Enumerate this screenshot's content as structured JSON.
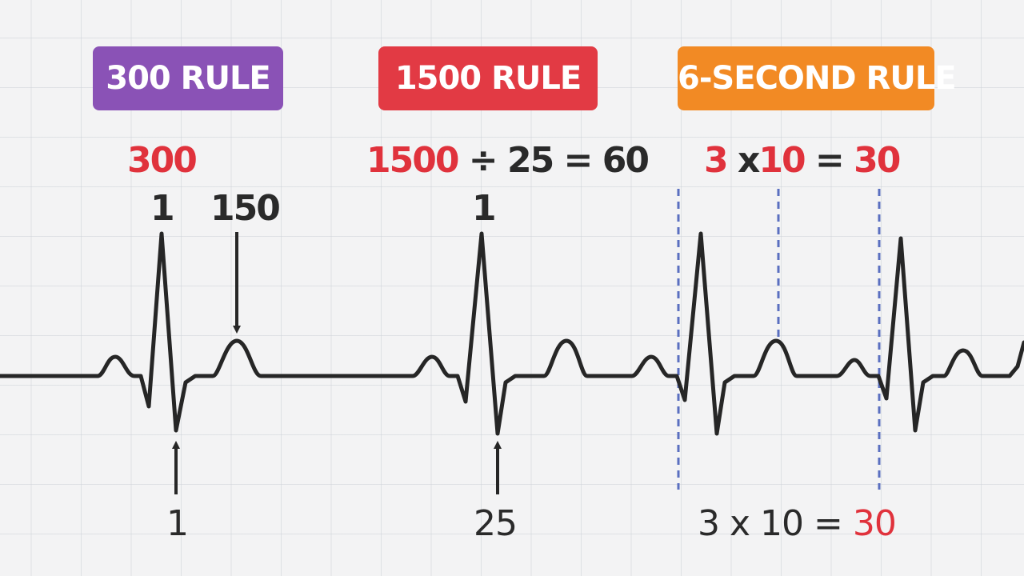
{
  "colors": {
    "rule300": "#8a52b6",
    "rule1500": "#e23a44",
    "rule6s": "#f28a24",
    "highlight": "#e0323c",
    "text": "#2a2a2a",
    "trace": "#262626",
    "interval": "#5a6fc0"
  },
  "rules": {
    "r300": {
      "title": "300 RULE",
      "formula": "300",
      "top_count": "1",
      "arrow_label": "150",
      "bottom_count": "1"
    },
    "r1500": {
      "title": "1500 RULE",
      "formula_num": "1500",
      "formula_rest": "÷ 25 = 60",
      "top_count": "1",
      "bottom_count": "25"
    },
    "r6s": {
      "title": "6-SECOND RULE",
      "formula_a": "3",
      "formula_op": "x",
      "formula_b": "10",
      "formula_eq": "=",
      "formula_result": "30",
      "bottom_formula": "3 x 10 =",
      "bottom_result": "30"
    }
  }
}
